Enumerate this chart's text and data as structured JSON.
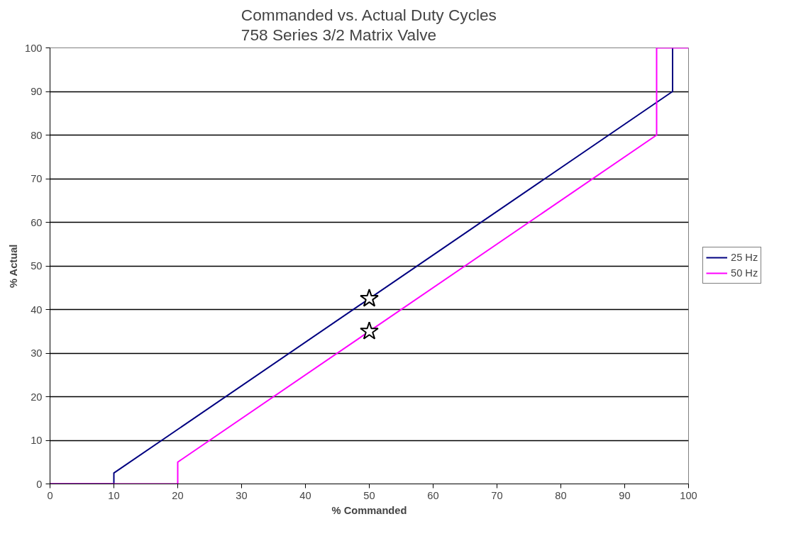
{
  "chart_data": {
    "type": "line",
    "title": "Commanded vs. Actual Duty Cycles\n758 Series 3/2 Matrix Valve",
    "xlabel": "% Commanded",
    "ylabel": "% Actual",
    "xlim": [
      0,
      100
    ],
    "ylim": [
      0,
      100
    ],
    "xticks": [
      0,
      10,
      20,
      30,
      40,
      50,
      60,
      70,
      80,
      90,
      100
    ],
    "yticks": [
      0,
      10,
      20,
      30,
      40,
      50,
      60,
      70,
      80,
      90,
      100
    ],
    "grid": "y",
    "legend": "right",
    "marker": "none",
    "line_style": "solid",
    "series": [
      {
        "name": "25 Hz",
        "color": "#000080",
        "x": [
          0,
          10,
          10,
          97.5,
          97.5
        ],
        "values": [
          0,
          0,
          2.5,
          90,
          100
        ]
      },
      {
        "name": "50 Hz",
        "color": "#ff00ff",
        "x": [
          0,
          20,
          20,
          95,
          95,
          100
        ],
        "values": [
          0,
          0,
          5,
          80,
          100,
          100
        ]
      },
      {
        "type": "scatter",
        "marker": "star",
        "color": "#000000",
        "x": [
          50,
          50
        ],
        "values": [
          42.5,
          35
        ]
      }
    ]
  }
}
